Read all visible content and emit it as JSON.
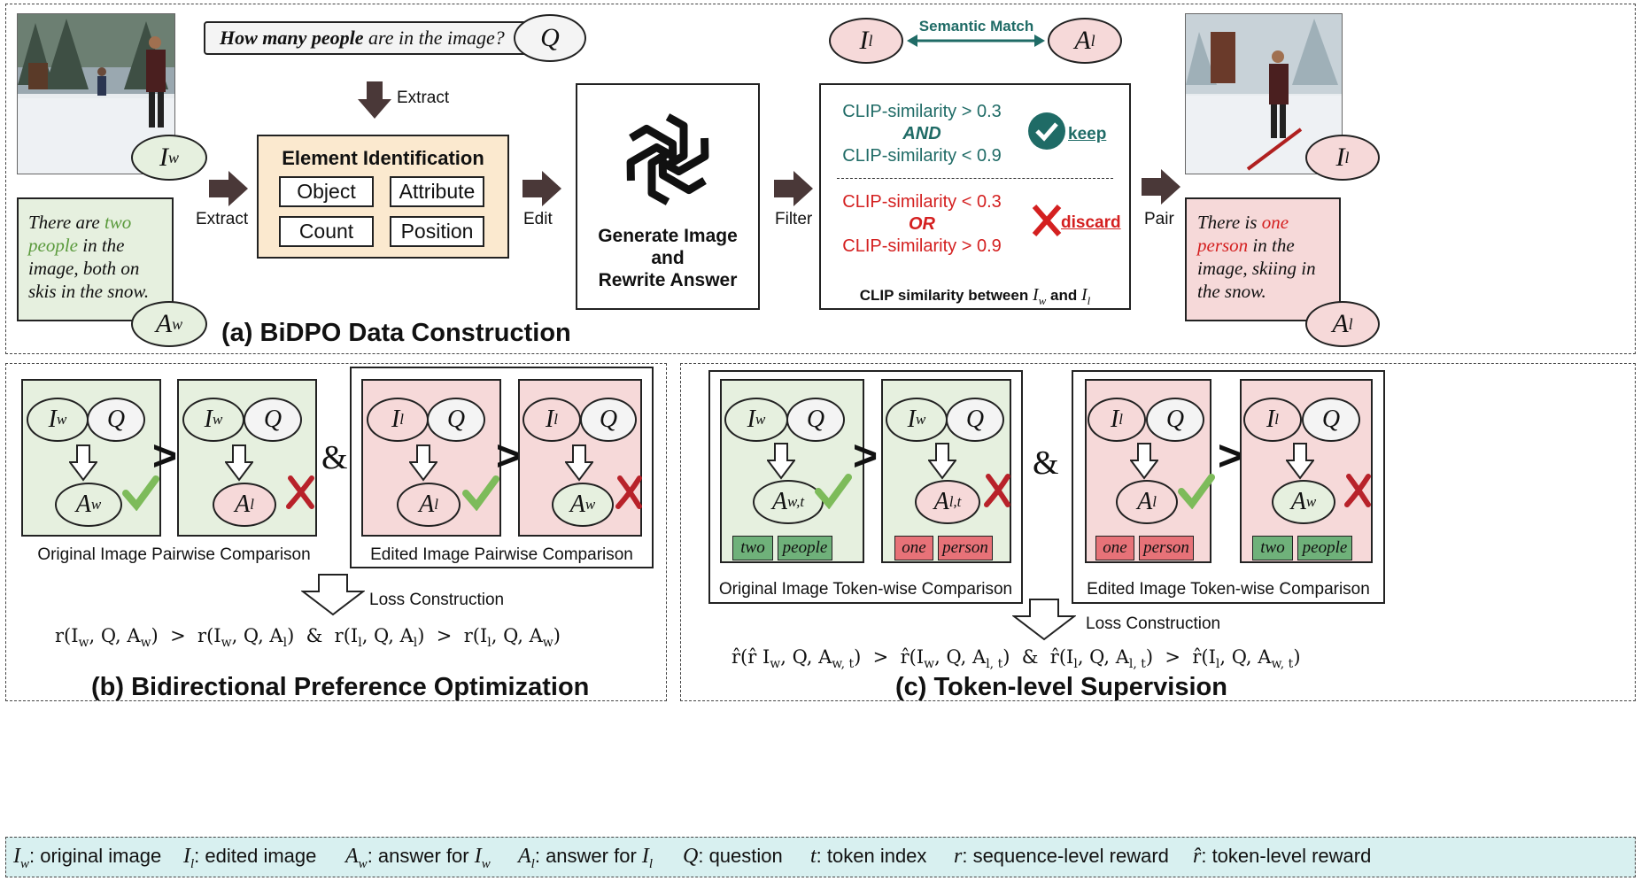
{
  "panel_a": {
    "title": "(a) BiDPO Data Construction",
    "question_bold": "How many people",
    "question_rest": " are in the image?",
    "q_symbol": "Q",
    "extract_top": "Extract",
    "extract_left": "Extract",
    "edit": "Edit",
    "filter": "Filter",
    "pair": "Pair",
    "element_title": "Element Identification",
    "elements": [
      "Object",
      "Attribute",
      "Count",
      "Position"
    ],
    "generate_lines": [
      "Generate Image",
      "and",
      "Rewrite Answer"
    ],
    "semantic_match": "Semantic Match",
    "keep_cond_1": "CLIP-similarity > 0.3",
    "keep_and": "AND",
    "keep_cond_2": "CLIP-similarity < 0.9",
    "keep_label": "keep",
    "discard_cond_1": "CLIP-similarity < 0.3",
    "discard_or": "OR",
    "discard_cond_2": "CLIP-similarity > 0.9",
    "discard_label": "discard",
    "clip_caption": "CLIP similarity between",
    "clip_and": "and",
    "answer_w": {
      "pre": "There are ",
      "hl": "two people",
      "post": " in the image, both on skis in the snow."
    },
    "answer_l": {
      "pre": "There is ",
      "hl": "one person",
      "post": " in the image, skiing in the snow."
    },
    "sym": {
      "Iw": "I",
      "Iw_sub": "w",
      "Il": "I",
      "Il_sub": "l",
      "Aw": "A",
      "Aw_sub": "w",
      "Al": "A",
      "Al_sub": "l"
    }
  },
  "panel_b": {
    "title": "(b) Bidirectional Preference Optimization",
    "caption_orig": "Original Image Pairwise Comparison",
    "caption_edit": "Edited Image Pairwise Comparison",
    "loss": "Loss Construction",
    "formula": "r(I_w, Q, A_w) > r(I_w, Q, A_l) & r(I_l, Q, A_l) > r(I_l, Q, A_w)"
  },
  "panel_c": {
    "title": "(c) Token-level Supervision",
    "caption_orig": "Original Image Token-wise Comparison",
    "caption_edit": "Edited Image Token-wise Comparison",
    "loss": "Loss Construction",
    "tokens_w": [
      "two",
      "people"
    ],
    "tokens_l": [
      "one",
      "person"
    ],
    "formula": "r̂(r̂ I_w, Q, A_{w,t}) > r̂(I_w, Q, A_{l,t}) & r̂(I_l, Q, A_{l,t}) > r̂(I_l, Q, A_{w,t})"
  },
  "legend": {
    "items": [
      {
        "sym": "I",
        "sub": "w",
        "text": ": original image"
      },
      {
        "sym": "I",
        "sub": "l",
        "text": ": edited image"
      },
      {
        "sym": "A",
        "sub": "w",
        "text": ": answer for ",
        "sym2": "I",
        "sub2": "w"
      },
      {
        "sym": "A",
        "sub": "l",
        "text": ": answer for ",
        "sym2": "I",
        "sub2": "l"
      },
      {
        "sym": "Q",
        "sub": "",
        "text": ": question"
      },
      {
        "sym": "t",
        "sub": "",
        "text": ": token index"
      },
      {
        "sym": "r",
        "sub": "",
        "text": ": sequence-level reward"
      },
      {
        "sym": "r̂",
        "sub": "",
        "text": ": token-level reward"
      }
    ]
  },
  "colors": {
    "green_fill": "#e6f0df",
    "red_fill": "#f6d9d9",
    "legend_fill": "#d8f0f0",
    "highlight_green": "#5a9a3c",
    "highlight_red": "#d42020",
    "teal": "#1f6b66",
    "red": "#d42020",
    "check_green": "#7dbb5a",
    "cross_red": "#b8222a",
    "token_green": "#6fb17a",
    "token_red": "#e77278"
  }
}
